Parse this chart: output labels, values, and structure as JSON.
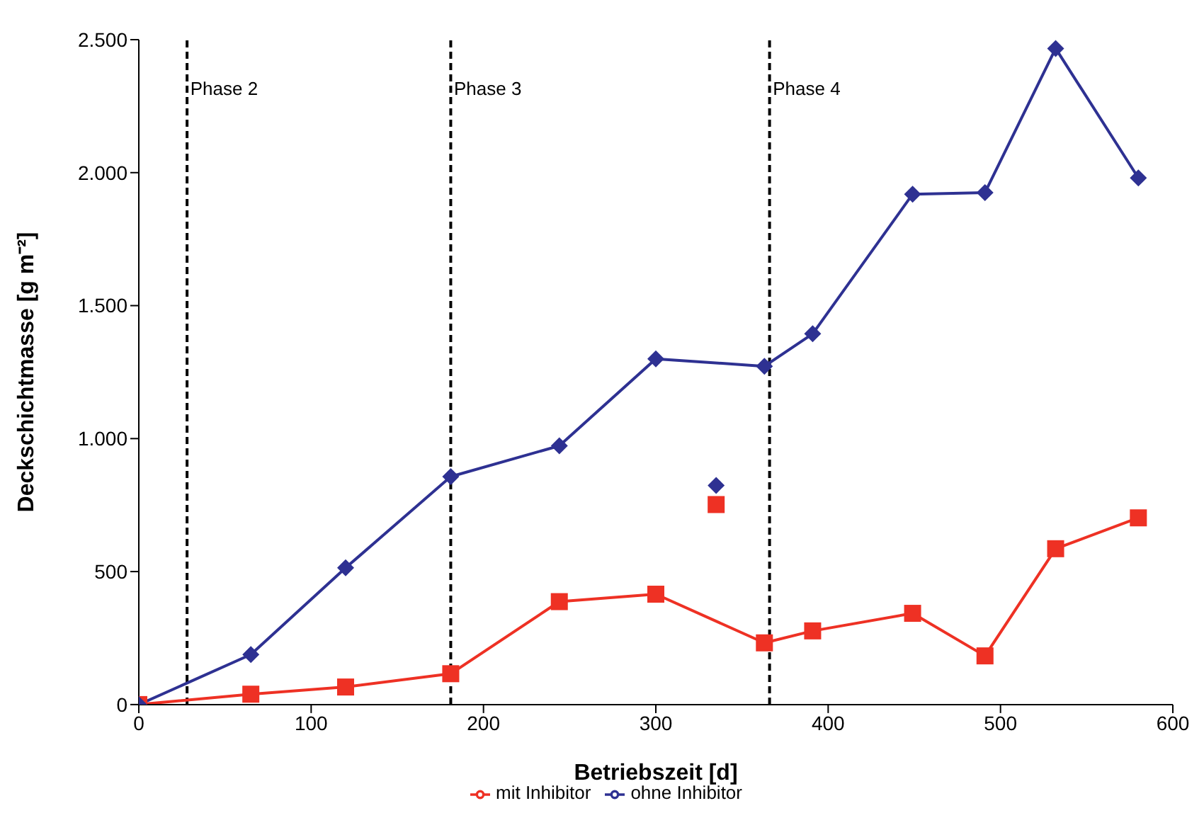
{
  "chart_data": {
    "type": "line",
    "xlabel": "Betriebszeit [d]",
    "ylabel": "Deckschichtmasse [g m⁻²]",
    "xlim": [
      0,
      600
    ],
    "xticks": [
      0,
      100,
      200,
      300,
      400,
      500,
      600
    ],
    "ylim": [
      0,
      2500
    ],
    "yticks": [
      0,
      500,
      {
        "value": 1000,
        "label": "1.000"
      },
      {
        "value": 1500,
        "label": "1.500"
      },
      {
        "value": 2000,
        "label": "2.000"
      },
      {
        "value": 2500,
        "label": "2.500"
      }
    ],
    "grid": false,
    "legend": "bottom",
    "series": [
      {
        "name": "mit Inhibitor",
        "color": "#ee3124",
        "marker": "square",
        "x": [
          0,
          65,
          120,
          181,
          244,
          300,
          363,
          391,
          449,
          491,
          532,
          580
        ],
        "values": [
          0,
          39,
          66,
          116,
          387,
          415,
          232,
          277,
          343,
          183,
          586,
          702
        ]
      },
      {
        "name": "ohne Inhibitor",
        "color": "#2e3192",
        "marker": "diamond",
        "x": [
          0,
          65,
          120,
          181,
          244,
          300,
          363,
          391,
          449,
          491,
          532,
          580
        ],
        "values": [
          0,
          188,
          514,
          857,
          973,
          1300,
          1272,
          1394,
          1919,
          1925,
          2467,
          1980
        ]
      },
      {
        "type": "scatter",
        "color": "#ee3124",
        "marker": "square",
        "x": [
          335
        ],
        "values": [
          752
        ]
      },
      {
        "type": "scatter",
        "color": "#2e3192",
        "marker": "diamond",
        "x": [
          335
        ],
        "values": [
          824
        ]
      }
    ],
    "ref_lines": [
      {
        "axis": "x",
        "value": 28,
        "label": "Phase 2",
        "color": "#000000",
        "line_style": "dashed"
      },
      {
        "axis": "x",
        "value": 181,
        "label": "Phase 3",
        "color": "#000000",
        "line_style": "dashed"
      },
      {
        "axis": "x",
        "value": 366,
        "label": "Phase 4",
        "color": "#000000",
        "line_style": "dashed"
      }
    ]
  }
}
